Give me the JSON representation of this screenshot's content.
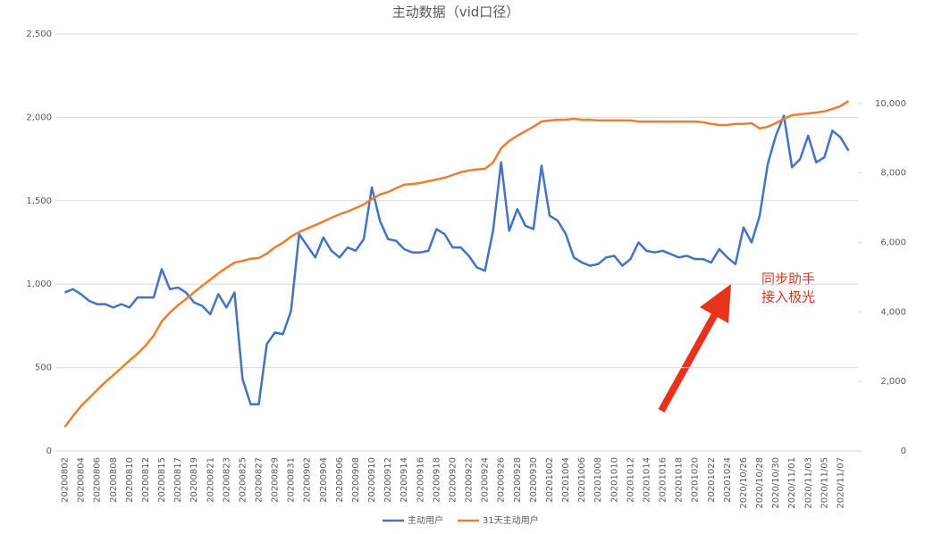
{
  "chart_data": {
    "type": "line",
    "title": "主动数据（vid口径）",
    "annotation": [
      "同步助手",
      "接入极光"
    ],
    "categories": [
      "20200802",
      null,
      "20200804",
      null,
      "20200806",
      null,
      "20200808",
      null,
      "20200810",
      null,
      "20200812",
      null,
      "20200815",
      null,
      "20200817",
      null,
      "20200819",
      null,
      "20200821",
      null,
      "20200823",
      null,
      "20200825",
      null,
      "20200827",
      null,
      "20200829",
      null,
      "20200831",
      null,
      "20200902",
      null,
      "20200904",
      null,
      "20200906",
      null,
      "20200908",
      null,
      "20200910",
      null,
      "20200912",
      null,
      "20200914",
      null,
      "20200916",
      null,
      "20200918",
      null,
      "20200920",
      null,
      "20200922",
      null,
      "20200924",
      null,
      "20200926",
      null,
      "20200928",
      null,
      "20200930",
      null,
      "20201002",
      null,
      "20201004",
      null,
      "20201006",
      null,
      "20201008",
      null,
      "20201010",
      null,
      "20201012",
      null,
      "20201014",
      null,
      "20201016",
      null,
      "20201018",
      null,
      "20201020",
      null,
      "20201022",
      null,
      "20201024",
      null,
      "2020/10/26",
      null,
      "2020/10/28",
      null,
      "2020/10/30",
      null,
      "2020/11/01",
      null,
      "2020/11/03",
      null,
      "2020/11/05",
      null,
      "2020/11/07",
      null
    ],
    "series": [
      {
        "name": "主动用户",
        "color": "#4472c4",
        "values": [
          950,
          970,
          940,
          900,
          880,
          880,
          860,
          880,
          860,
          920,
          920,
          920,
          1090,
          970,
          980,
          950,
          890,
          870,
          820,
          940,
          860,
          950,
          430,
          280,
          280,
          640,
          710,
          700,
          840,
          1300,
          1230,
          1160,
          1280,
          1200,
          1160,
          1220,
          1200,
          1270,
          1580,
          1380,
          1270,
          1260,
          1210,
          1190,
          1190,
          1200,
          1330,
          1300,
          1220,
          1220,
          1170,
          1100,
          1080,
          1320,
          1730,
          1320,
          1450,
          1350,
          1330,
          1710,
          1410,
          1380,
          1300,
          1160,
          1130,
          1110,
          1120,
          1160,
          1170,
          1110,
          1150,
          1250,
          1200,
          1190,
          1200,
          1180,
          1160,
          1170,
          1150,
          1150,
          1130,
          1210,
          1160,
          1120,
          1340,
          1250,
          1410,
          1720,
          1890,
          2010,
          1700,
          1750,
          1890,
          1730,
          1760,
          1920,
          1880,
          1800
        ]
      },
      {
        "name": "31天主动用户",
        "color": "#ed7d31",
        "axis": "y2",
        "values": [
          690,
          1000,
          1290,
          1520,
          1750,
          1980,
          2180,
          2390,
          2600,
          2800,
          3030,
          3320,
          3730,
          3980,
          4190,
          4370,
          4570,
          4750,
          4930,
          5110,
          5270,
          5420,
          5470,
          5530,
          5550,
          5680,
          5860,
          5990,
          6170,
          6300,
          6400,
          6500,
          6600,
          6710,
          6810,
          6890,
          6990,
          7090,
          7250,
          7380,
          7450,
          7560,
          7660,
          7680,
          7710,
          7760,
          7810,
          7860,
          7940,
          8020,
          8070,
          8100,
          8120,
          8300,
          8710,
          8920,
          9070,
          9200,
          9330,
          9480,
          9510,
          9530,
          9530,
          9560,
          9530,
          9530,
          9510,
          9510,
          9510,
          9510,
          9510,
          9480,
          9480,
          9480,
          9480,
          9480,
          9480,
          9480,
          9480,
          9460,
          9410,
          9380,
          9380,
          9410,
          9410,
          9430,
          9280,
          9330,
          9430,
          9560,
          9660,
          9690,
          9710,
          9740,
          9770,
          9840,
          9920,
          10070
        ]
      }
    ],
    "ylim": [
      0,
      2500
    ],
    "yticks": [
      0,
      500,
      {
        "value": 1000,
        "label": "1,000"
      },
      {
        "value": 1500,
        "label": "1,500"
      },
      {
        "value": 2000,
        "label": "2,000"
      },
      {
        "value": 2500,
        "label": "2,500"
      }
    ],
    "y2lim": [
      0,
      12000
    ],
    "y2ticks": [
      0,
      {
        "value": 2000,
        "label": "2,000"
      },
      {
        "value": 4000,
        "label": "4,000"
      },
      {
        "value": 6000,
        "label": "6,000"
      },
      {
        "value": 8000,
        "label": "8,000"
      },
      {
        "value": 10000,
        "label": "10,000"
      }
    ],
    "grid": true
  }
}
